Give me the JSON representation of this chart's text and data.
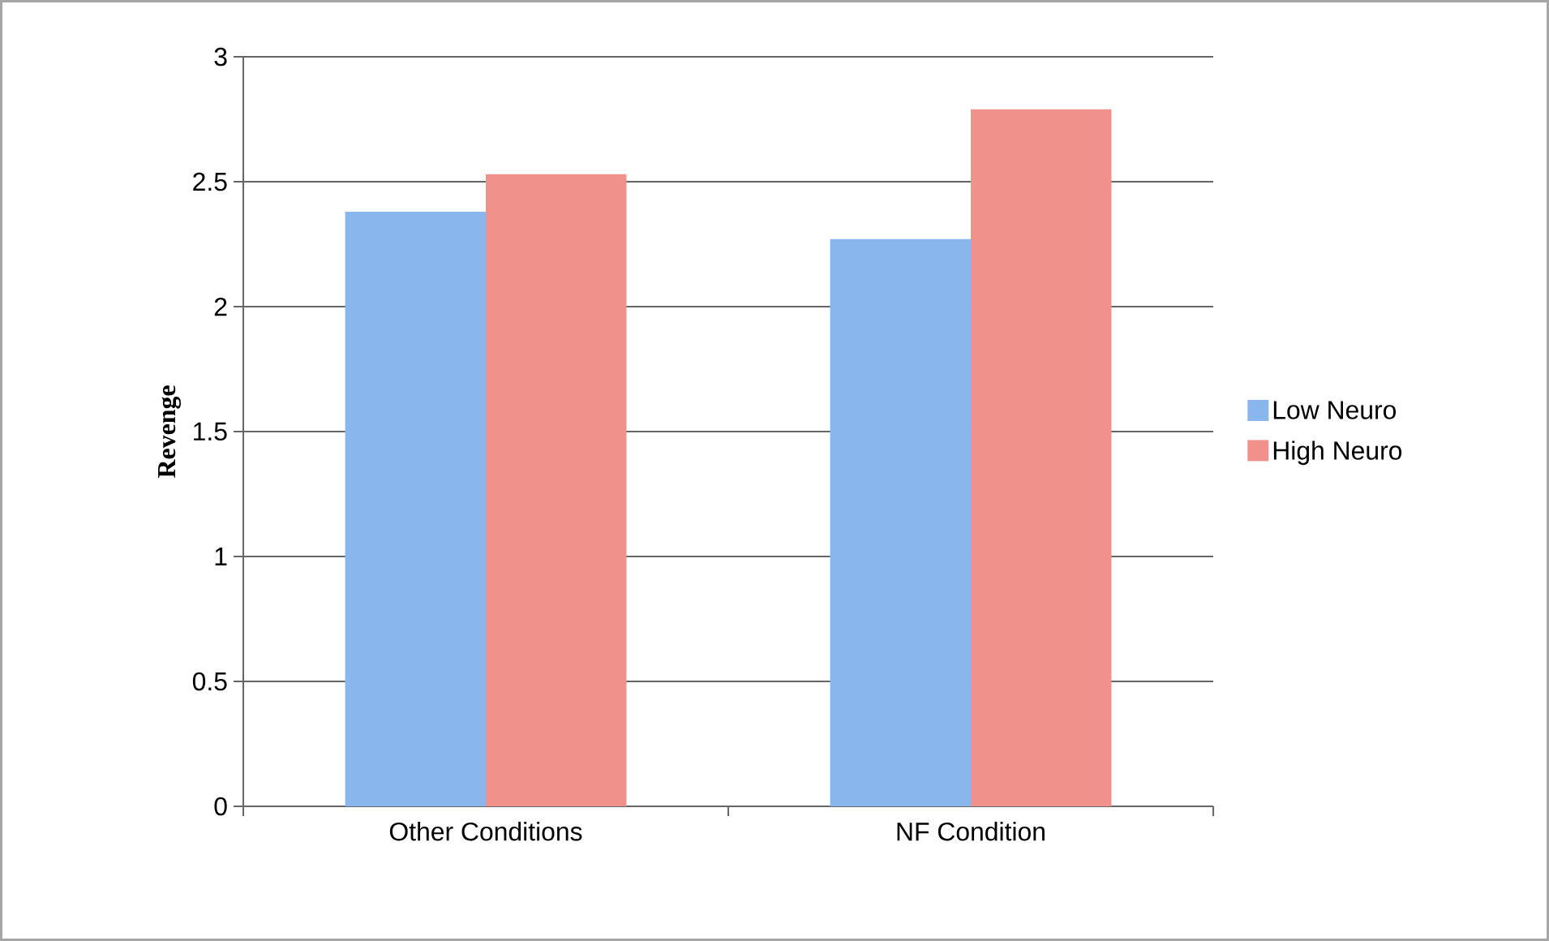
{
  "chart_data": {
    "type": "bar",
    "ylabel": "Revenge",
    "categories": [
      "Other Conditions",
      "NF Condition"
    ],
    "series": [
      {
        "name": "Low Neuro",
        "color": "#8ab6ee",
        "values": [
          2.38,
          2.27
        ]
      },
      {
        "name": "High Neuro",
        "color": "#f0918b",
        "values": [
          2.53,
          2.79
        ]
      }
    ],
    "ylim": [
      0,
      3
    ],
    "yticks": [
      0,
      0.5,
      1,
      1.5,
      2,
      2.5,
      3
    ],
    "grid": "y",
    "legend": "right"
  }
}
